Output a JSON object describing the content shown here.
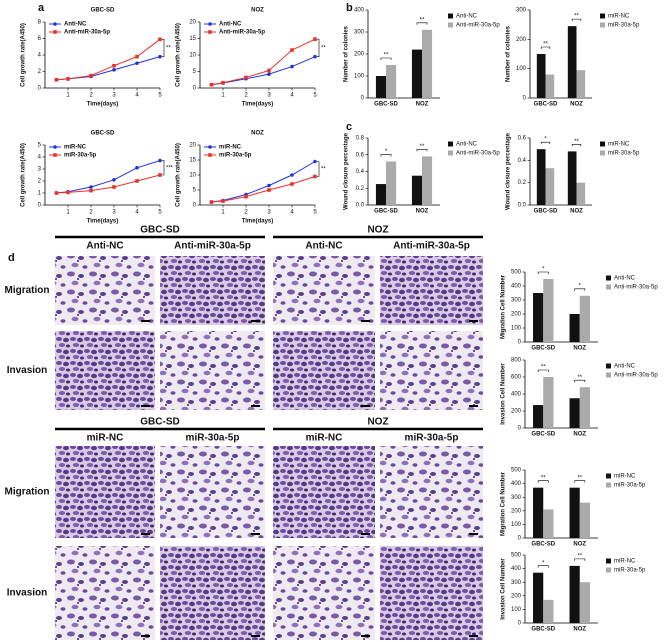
{
  "panel_labels": [
    "a",
    "b",
    "c",
    "d"
  ],
  "chart_data": [
    {
      "type": "line",
      "title": "GBC-SD",
      "xlabel": "Time(days)",
      "ylabel": "Cell growth rate(A450)",
      "x": [
        0.5,
        1,
        2,
        3,
        4,
        5
      ],
      "xlim": [
        0,
        5
      ],
      "xticks": [
        1,
        2,
        3,
        4,
        5
      ],
      "ylim": [
        0,
        8
      ],
      "yticks": [
        0,
        2,
        4,
        6,
        8
      ],
      "annotation": "**",
      "series": [
        {
          "name": "Anti-NC",
          "color": "#2233dd",
          "marker": "circle",
          "values": [
            1,
            1.1,
            1.4,
            2.2,
            3.0,
            3.8
          ]
        },
        {
          "name": "Anti-miR-30a-5p",
          "color": "#e8332a",
          "marker": "square",
          "values": [
            1,
            1.1,
            1.5,
            2.7,
            3.8,
            5.9
          ]
        }
      ]
    },
    {
      "type": "line",
      "title": "NOZ",
      "xlabel": "Time(days)",
      "ylabel": "Cell growth rate(A450)",
      "x": [
        0.5,
        1,
        2,
        3,
        4,
        5
      ],
      "xlim": [
        0,
        5
      ],
      "xticks": [
        1,
        2,
        3,
        4,
        5
      ],
      "ylim": [
        0,
        20
      ],
      "yticks": [
        0,
        5,
        10,
        15,
        20
      ],
      "annotation": "**",
      "series": [
        {
          "name": "Anti-NC",
          "color": "#2233dd",
          "marker": "circle",
          "values": [
            1,
            1.5,
            2.8,
            4.2,
            6.5,
            9.5
          ]
        },
        {
          "name": "Anti-miR-30a-5p",
          "color": "#e8332a",
          "marker": "square",
          "values": [
            1,
            1.6,
            3.2,
            5.3,
            11.5,
            14.8
          ]
        }
      ]
    },
    {
      "type": "line",
      "title": "GBC-SD",
      "xlabel": "Time(days)",
      "ylabel": "Cell growth rate(A450)",
      "x": [
        0.5,
        1,
        2,
        3,
        4,
        5
      ],
      "xlim": [
        0,
        5
      ],
      "xticks": [
        1,
        2,
        3,
        4,
        5
      ],
      "ylim": [
        0,
        5
      ],
      "yticks": [
        0,
        1,
        2,
        3,
        4,
        5
      ],
      "annotation": "***",
      "series": [
        {
          "name": "miR-NC",
          "color": "#2233dd",
          "marker": "circle",
          "values": [
            1,
            1.1,
            1.5,
            2.1,
            3.1,
            3.7
          ]
        },
        {
          "name": "miR-30a-5p",
          "color": "#e8332a",
          "marker": "square",
          "values": [
            1,
            1.05,
            1.2,
            1.5,
            2.0,
            2.5
          ]
        }
      ]
    },
    {
      "type": "line",
      "title": "NOZ",
      "xlabel": "Time(days)",
      "ylabel": "Cell growth rate(A450)",
      "x": [
        0.5,
        1,
        2,
        3,
        4,
        5
      ],
      "xlim": [
        0,
        5
      ],
      "xticks": [
        1,
        2,
        3,
        4,
        5
      ],
      "ylim": [
        0,
        20
      ],
      "yticks": [
        0,
        5,
        10,
        15,
        20
      ],
      "annotation": "**",
      "series": [
        {
          "name": "miR-NC",
          "color": "#2233dd",
          "marker": "circle",
          "values": [
            1,
            1.5,
            3.5,
            6.5,
            10,
            14.5
          ]
        },
        {
          "name": "miR-30a-5p",
          "color": "#e8332a",
          "marker": "square",
          "values": [
            1,
            1.3,
            2.8,
            5,
            7,
            9.5
          ]
        }
      ]
    },
    {
      "type": "bar",
      "ylabel": "Number of colonies",
      "categories": [
        "GBC-SD",
        "NOZ"
      ],
      "ylim": [
        0,
        400
      ],
      "yticks": [
        0,
        100,
        200,
        300,
        400
      ],
      "annotations": [
        "**",
        "**"
      ],
      "series": [
        {
          "name": "Anti-NC",
          "color": "#111111",
          "values": [
            100,
            220
          ]
        },
        {
          "name": "Anti-miR-30a-5p",
          "color": "#aaaaaa",
          "values": [
            150,
            310
          ]
        }
      ]
    },
    {
      "type": "bar",
      "ylabel": "Number of colonies",
      "categories": [
        "GBC-SD",
        "NOZ"
      ],
      "ylim": [
        0,
        300
      ],
      "yticks": [
        0,
        100,
        200,
        300
      ],
      "annotations": [
        "**",
        "**"
      ],
      "series": [
        {
          "name": "miR-NC",
          "color": "#111111",
          "values": [
            150,
            245
          ]
        },
        {
          "name": "miR-30a-5p",
          "color": "#aaaaaa",
          "values": [
            80,
            95
          ]
        }
      ]
    },
    {
      "type": "bar",
      "ylabel": "Wound closure percentage",
      "categories": [
        "GBC-SD",
        "NOZ"
      ],
      "ylim": [
        0,
        0.8
      ],
      "yticks": [
        {
          "value": 0,
          "label": "0.0"
        },
        0.2,
        0.4,
        0.6,
        0.8
      ],
      "annotations": [
        "*",
        "**"
      ],
      "series": [
        {
          "name": "Anti-NC",
          "color": "#111111",
          "values": [
            0.25,
            0.35
          ]
        },
        {
          "name": "Anti-miR-30a-5p",
          "color": "#aaaaaa",
          "values": [
            0.52,
            0.58
          ]
        }
      ]
    },
    {
      "type": "bar",
      "ylabel": "Wound closure percentage",
      "categories": [
        "GBC-SD",
        "NOZ"
      ],
      "ylim": [
        0,
        0.6
      ],
      "yticks": [
        {
          "value": 0,
          "label": "0.0"
        },
        0.2,
        0.4,
        0.6
      ],
      "annotations": [
        "*",
        "**"
      ],
      "series": [
        {
          "name": "miR-NC",
          "color": "#111111",
          "values": [
            0.5,
            0.48
          ]
        },
        {
          "name": "miR-30a-5p",
          "color": "#aaaaaa",
          "values": [
            0.33,
            0.2
          ]
        }
      ]
    },
    {
      "type": "bar",
      "ylabel": "Migration Cell Number",
      "categories": [
        "GBC-SD",
        "NOZ"
      ],
      "ylim": [
        0,
        500
      ],
      "yticks": [
        0,
        100,
        200,
        300,
        400,
        500
      ],
      "annotations": [
        "*",
        "*"
      ],
      "series": [
        {
          "name": "Anti-NC",
          "color": "#111111",
          "values": [
            350,
            200
          ]
        },
        {
          "name": "Anti-miR-30a-5p",
          "color": "#aaaaaa",
          "values": [
            450,
            330
          ]
        }
      ]
    },
    {
      "type": "bar",
      "ylabel": "Invasion Cell Number",
      "categories": [
        "GBC-SD",
        "NOZ"
      ],
      "ylim": [
        0,
        800
      ],
      "yticks": [
        0,
        200,
        400,
        600,
        800
      ],
      "annotations": [
        "**",
        "**"
      ],
      "series": [
        {
          "name": "Anti-NC",
          "color": "#111111",
          "values": [
            270,
            350
          ]
        },
        {
          "name": "Anti-miR-30a-5p",
          "color": "#aaaaaa",
          "values": [
            600,
            480
          ]
        }
      ]
    },
    {
      "type": "bar",
      "ylabel": "Migration Cell Number",
      "categories": [
        "GBC-SD",
        "NOZ"
      ],
      "ylim": [
        0,
        500
      ],
      "yticks": [
        0,
        100,
        200,
        300,
        400,
        500
      ],
      "annotations": [
        "**",
        "**"
      ],
      "series": [
        {
          "name": "miR-NC",
          "color": "#111111",
          "values": [
            370,
            370
          ]
        },
        {
          "name": "miR-30a-5p",
          "color": "#aaaaaa",
          "values": [
            210,
            260
          ]
        }
      ]
    },
    {
      "type": "bar",
      "ylabel": "Invasion Cell Number",
      "categories": [
        "GBC-SD",
        "NOZ"
      ],
      "ylim": [
        0,
        500
      ],
      "yticks": [
        0,
        100,
        200,
        300,
        400,
        500
      ],
      "annotations": [
        "*",
        "**"
      ],
      "series": [
        {
          "name": "miR-NC",
          "color": "#111111",
          "values": [
            370,
            420
          ]
        },
        {
          "name": "miR-30a-5p",
          "color": "#aaaaaa",
          "values": [
            170,
            300
          ]
        }
      ]
    }
  ],
  "images": {
    "groups": [
      {
        "cell_lines": [
          "GBC-SD",
          "NOZ"
        ],
        "columns": [
          "Anti-NC",
          "Anti-miR-30a-5p",
          "Anti-NC",
          "Anti-miR-30a-5p"
        ],
        "rows": [
          "Migration",
          "Invasion"
        ]
      },
      {
        "cell_lines": [
          "GBC-SD",
          "NOZ"
        ],
        "columns": [
          "miR-NC",
          "miR-30a-5p",
          "miR-NC",
          "miR-30a-5p"
        ],
        "rows": [
          "Migration",
          "Invasion"
        ]
      }
    ]
  }
}
